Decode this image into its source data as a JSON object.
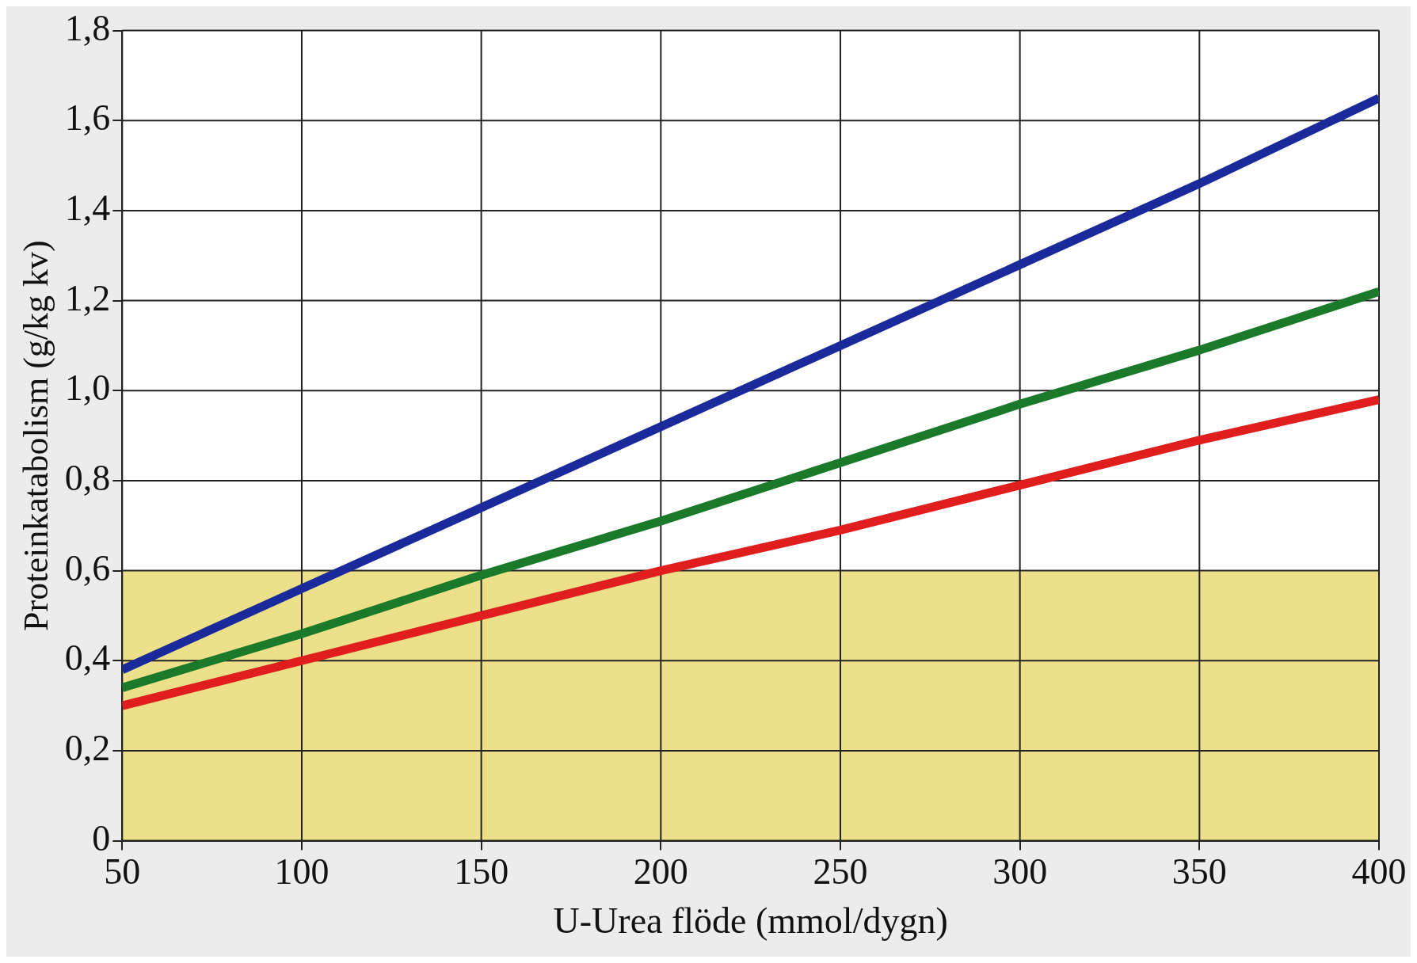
{
  "chart_data": {
    "type": "line",
    "xlabel": "U-Urea flöde (mmol/dygn)",
    "ylabel": "Proteinkatabolism (g/kg kv)",
    "x": [
      50,
      100,
      150,
      200,
      250,
      300,
      350,
      400
    ],
    "series": [
      {
        "color": "#1a2a9a",
        "values": [
          0.38,
          0.56,
          0.74,
          0.92,
          1.1,
          1.28,
          1.46,
          1.65
        ]
      },
      {
        "color": "#1a7a2a",
        "values": [
          0.34,
          0.46,
          0.59,
          0.71,
          0.84,
          0.97,
          1.09,
          1.22
        ]
      },
      {
        "color": "#e01e1e",
        "values": [
          0.3,
          0.4,
          0.5,
          0.6,
          0.69,
          0.79,
          0.89,
          0.98
        ]
      }
    ],
    "xlim": [
      50,
      400
    ],
    "xticks": [
      50,
      100,
      150,
      200,
      250,
      300,
      350,
      400
    ],
    "ylim": [
      0,
      1.8
    ],
    "yticks": [
      0,
      {
        "value": 0.2,
        "label": "0,2"
      },
      {
        "value": 0.4,
        "label": "0,4"
      },
      {
        "value": 0.6,
        "label": "0,6"
      },
      {
        "value": 0.8,
        "label": "0,8"
      },
      {
        "value": 1.0,
        "label": "1,0"
      },
      {
        "value": 1.2,
        "label": "1,2"
      },
      {
        "value": 1.4,
        "label": "1,4"
      },
      {
        "value": 1.6,
        "label": "1,6"
      },
      {
        "value": 1.8,
        "label": "1,8"
      }
    ],
    "bands": [
      {
        "axis": "y",
        "from": 0,
        "to": 0.6,
        "color": "#ece08a"
      }
    ],
    "grid": true,
    "legend": false,
    "marker": "none",
    "line_style": "solid"
  }
}
